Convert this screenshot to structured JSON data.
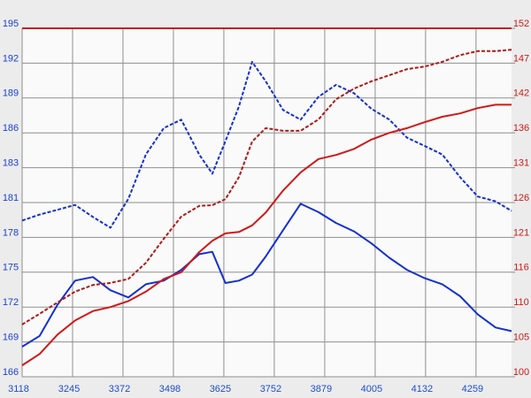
{
  "chart_data": {
    "type": "line",
    "x": [
      3118,
      3162,
      3207,
      3251,
      3296,
      3340,
      3385,
      3429,
      3474,
      3518,
      3563,
      3596,
      3629,
      3663,
      3696,
      3730,
      3774,
      3818,
      3863,
      3907,
      3952,
      3996,
      4041,
      4085,
      4130,
      4174,
      4219,
      4263,
      4308,
      4348
    ],
    "xlim": [
      3118,
      4348
    ],
    "xticks": [
      3118,
      {
        "value": 3244.75,
        "label": "3245"
      },
      {
        "value": 3371.5,
        "label": "3372"
      },
      {
        "value": 3498.25,
        "label": "3498"
      },
      3625,
      {
        "value": 3751.75,
        "label": "3752"
      },
      {
        "value": 3878.5,
        "label": "3879"
      },
      {
        "value": 4005.25,
        "label": "4005"
      },
      4132,
      {
        "value": 4258.75,
        "label": "4259"
      }
    ],
    "ylim": [
      166,
      195
    ],
    "yticks": [
      166,
      {
        "value": 168.9,
        "label": "169"
      },
      {
        "value": 171.8,
        "label": "172"
      },
      {
        "value": 174.7,
        "label": "175"
      },
      {
        "value": 177.6,
        "label": "178"
      },
      {
        "value": 180.5,
        "label": "181"
      },
      {
        "value": 183.4,
        "label": "183"
      },
      {
        "value": 186.3,
        "label": "186"
      },
      {
        "value": 189.2,
        "label": "189"
      },
      {
        "value": 192.1,
        "label": "192"
      },
      195
    ],
    "y2lim": [
      100,
      152
    ],
    "y2ticks": [
      100,
      {
        "value": 105.2,
        "label": "105"
      },
      {
        "value": 110.4,
        "label": "110"
      },
      {
        "value": 115.6,
        "label": "116"
      },
      {
        "value": 120.8,
        "label": "121"
      },
      126,
      {
        "value": 131.2,
        "label": "131"
      },
      {
        "value": 136.4,
        "label": "136"
      },
      {
        "value": 141.6,
        "label": "142"
      },
      {
        "value": 146.8,
        "label": "147"
      },
      152
    ],
    "grid": true,
    "series": [
      {
        "color": "#1530d0",
        "dashed": false,
        "values": [
          168.5,
          169.4,
          172.0,
          174.0,
          174.3,
          173.2,
          172.6,
          173.7,
          174.0,
          174.9,
          176.2,
          176.4,
          173.8,
          174.0,
          174.5,
          176.0,
          178.2,
          180.4,
          179.7,
          178.8,
          178.1,
          177.1,
          175.9,
          174.9,
          174.2,
          173.7,
          172.7,
          171.2,
          170.1,
          169.8
        ]
      },
      {
        "color": "#1530d0",
        "dashed": true,
        "values": [
          179.0,
          179.5,
          179.9,
          180.3,
          179.3,
          178.4,
          180.8,
          184.5,
          186.7,
          187.4,
          184.5,
          182.9,
          185.6,
          188.5,
          192.2,
          190.6,
          188.2,
          187.4,
          189.3,
          190.3,
          189.6,
          188.3,
          187.4,
          185.9,
          185.2,
          184.5,
          182.6,
          181.0,
          180.6,
          179.8
        ]
      },
      {
        "color": "#d01818",
        "dashed": false,
        "axis": "y2",
        "values": [
          101.7,
          103.4,
          106.3,
          108.4,
          109.8,
          110.4,
          111.3,
          112.7,
          114.6,
          115.6,
          118.6,
          120.3,
          121.4,
          121.6,
          122.6,
          124.5,
          127.8,
          130.5,
          132.5,
          133.1,
          134.0,
          135.4,
          136.4,
          137.1,
          138.0,
          138.8,
          139.3,
          140.1,
          140.6,
          140.6
        ]
      },
      {
        "color": "#b01818",
        "dashed": true,
        "axis": "y2",
        "values": [
          107.8,
          109.4,
          111.1,
          112.7,
          113.7,
          114.0,
          114.6,
          117.0,
          120.6,
          123.9,
          125.5,
          125.6,
          126.5,
          129.8,
          135.1,
          137.1,
          136.7,
          136.7,
          138.4,
          141.4,
          143.0,
          144.1,
          145.0,
          145.9,
          146.3,
          147.0,
          148.0,
          148.6,
          148.6,
          148.8
        ]
      }
    ]
  }
}
